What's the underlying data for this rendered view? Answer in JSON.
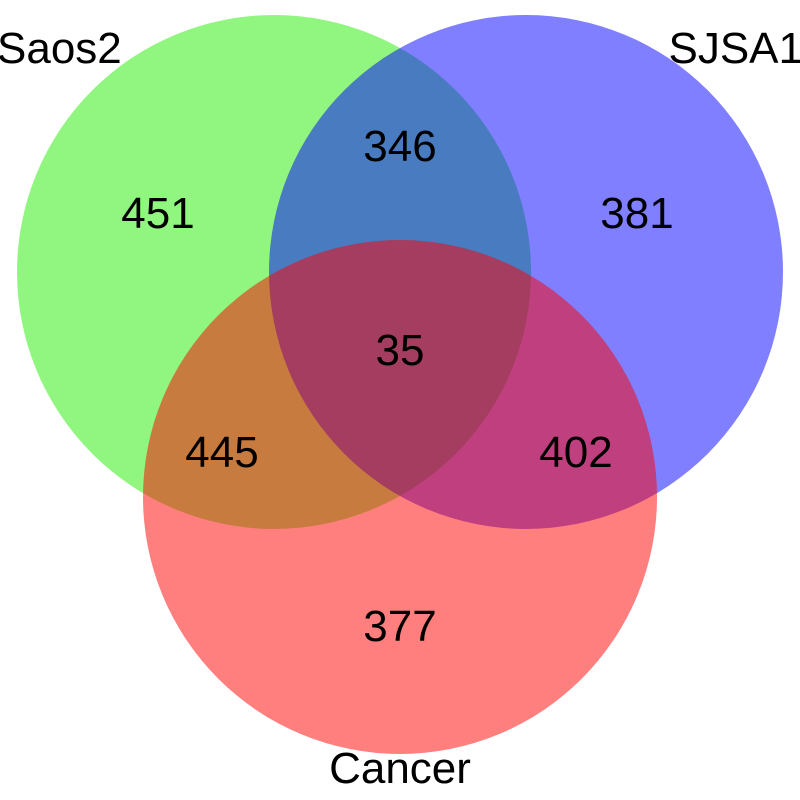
{
  "sets": [
    {
      "id": "saos2",
      "label": "Saos2",
      "color": "#22ee00"
    },
    {
      "id": "sjsa1",
      "label": "SJSA1",
      "color": "#0000ff"
    },
    {
      "id": "cancer",
      "label": "Cancer",
      "color": "#ff0000"
    }
  ],
  "regions": {
    "saos2_only": "451",
    "sjsa1_only": "381",
    "cancer_only": "377",
    "saos2_sjsa1": "346",
    "saos2_cancer": "445",
    "sjsa1_cancer": "402",
    "all_three": "35"
  }
}
